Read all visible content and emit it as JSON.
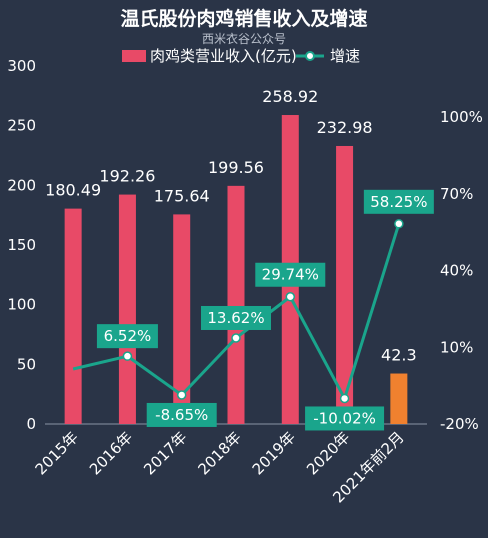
{
  "chart_data": {
    "type": "bar+line",
    "title": "温氏股份肉鸡销售收入及增速",
    "subtitle": "西米衣谷公众号",
    "categories": [
      "2015年",
      "2016年",
      "2017年",
      "2018年",
      "2019年",
      "2020年",
      "2021年前2月"
    ],
    "series": [
      {
        "name": "肉鸡类营业收入(亿元)",
        "kind": "bar",
        "axis": "left",
        "values": [
          180.49,
          192.26,
          175.64,
          199.56,
          258.92,
          232.98,
          42.3
        ],
        "value_labels": [
          "180.49",
          "192.26",
          "175.64",
          "199.56",
          "258.92",
          "232.98",
          "42.3"
        ],
        "color": "#e84a67",
        "highlight_color": "#f0812f",
        "highlight_index": 6
      },
      {
        "name": "增速",
        "kind": "line",
        "axis": "right",
        "values": [
          1.5,
          6.52,
          -8.65,
          13.62,
          29.74,
          -10.02,
          58.25
        ],
        "value_labels": [
          "",
          "6.52%",
          "-8.65%",
          "13.62%",
          "29.74%",
          "-10.02%",
          "58.25%"
        ],
        "color": "#1aa58c"
      }
    ],
    "y_left": {
      "min": 0,
      "max": 300,
      "ticks": [
        "0",
        "50",
        "100",
        "150",
        "200",
        "250",
        "300"
      ]
    },
    "y_right": {
      "min": -20,
      "max": 100,
      "ticks": [
        "-20%",
        "10%",
        "40%",
        "70%",
        "100%"
      ],
      "tick_values": [
        -20,
        10,
        40,
        70,
        100
      ]
    },
    "legend": "top-center",
    "grid": false
  }
}
